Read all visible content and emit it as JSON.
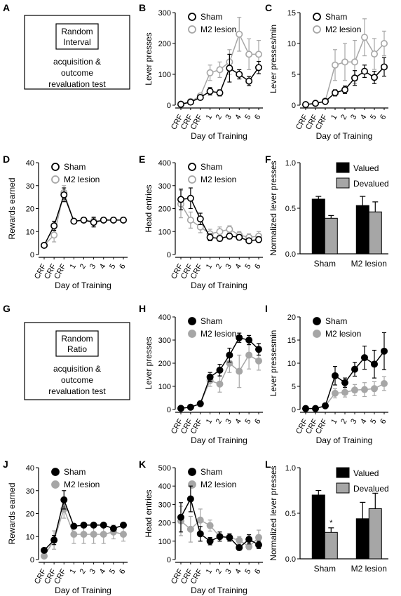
{
  "panels": [
    {
      "label": "A",
      "kind": "box",
      "box_title_lines": [
        "Random",
        "Interval"
      ],
      "box_text_lines": [
        "acquisition &",
        "outcome",
        "revaluation test"
      ]
    },
    {
      "label": "B",
      "kind": "line",
      "marker_style": "open",
      "ylabel": "Lever presses",
      "xlabel": "Day of Training",
      "categories": [
        "CRF",
        "CRF",
        "CRF",
        "1",
        "2",
        "3",
        "4",
        "5",
        "6"
      ],
      "ylim": [
        0,
        300
      ],
      "yticks": [
        0,
        100,
        200,
        300
      ],
      "series": [
        {
          "name": "Sham",
          "color": "#000000",
          "values": [
            3,
            10,
            25,
            45,
            40,
            120,
            100,
            78,
            122
          ],
          "err": [
            0,
            4,
            6,
            12,
            10,
            45,
            15,
            15,
            20
          ]
        },
        {
          "name": "M2 lesion",
          "color": "#a6a6a6",
          "values": [
            3,
            12,
            30,
            105,
            115,
            140,
            230,
            165,
            165
          ],
          "err": [
            0,
            4,
            8,
            25,
            25,
            40,
            55,
            50,
            45
          ]
        }
      ]
    },
    {
      "label": "C",
      "kind": "line",
      "marker_style": "open",
      "ylabel": "Lever presses/min",
      "xlabel": "Day of Training",
      "categories": [
        "CRF",
        "CRF",
        "CRF",
        "1",
        "2",
        "3",
        "4",
        "5",
        "6"
      ],
      "ylim": [
        0,
        15
      ],
      "yticks": [
        0,
        5,
        10,
        15
      ],
      "series": [
        {
          "name": "Sham",
          "color": "#000000",
          "values": [
            0.1,
            0.3,
            0.6,
            2.0,
            2.5,
            4.4,
            5.5,
            4.5,
            6.2
          ],
          "err": [
            0,
            0.1,
            0.2,
            0.5,
            0.6,
            1.2,
            1.0,
            1.0,
            1.5
          ]
        },
        {
          "name": "M2 lesion",
          "color": "#a6a6a6",
          "values": [
            0.1,
            0.3,
            0.7,
            6.5,
            7.0,
            7.0,
            11.0,
            8.3,
            10.0
          ],
          "err": [
            0,
            0.1,
            0.3,
            2.5,
            3.0,
            3.5,
            3.0,
            2.5,
            2.0
          ]
        }
      ]
    },
    {
      "label": "D",
      "kind": "line",
      "marker_style": "open",
      "ylabel": "Rewards earned",
      "xlabel": "Day of Training",
      "categories": [
        "CRF",
        "CRF",
        "CRF",
        "1",
        "2",
        "3",
        "4",
        "5",
        "6"
      ],
      "ylim": [
        0,
        40
      ],
      "yticks": [
        0,
        10,
        20,
        30,
        40
      ],
      "series": [
        {
          "name": "Sham",
          "color": "#000000",
          "values": [
            4,
            12.5,
            26,
            14.5,
            15,
            14,
            15,
            15,
            15
          ],
          "err": [
            0.5,
            2,
            3,
            0.5,
            0.5,
            2,
            0.3,
            0.3,
            0.3
          ]
        },
        {
          "name": "M2 lesion",
          "color": "#a6a6a6",
          "values": [
            4,
            8.5,
            27,
            14.5,
            15,
            14.5,
            15,
            15,
            15
          ],
          "err": [
            0.5,
            3,
            3,
            0.5,
            0.5,
            2,
            0.3,
            0.3,
            0.3
          ]
        }
      ]
    },
    {
      "label": "E",
      "kind": "line",
      "marker_style": "open",
      "ylabel": "Head entries",
      "xlabel": "Day of Training",
      "categories": [
        "CRF",
        "CRF",
        "CRF",
        "1",
        "2",
        "3",
        "4",
        "5",
        "6"
      ],
      "ylim": [
        0,
        400
      ],
      "yticks": [
        0,
        100,
        200,
        300,
        400
      ],
      "series": [
        {
          "name": "Sham",
          "color": "#000000",
          "values": [
            240,
            245,
            155,
            75,
            70,
            80,
            75,
            60,
            65
          ],
          "err": [
            45,
            45,
            25,
            15,
            12,
            12,
            12,
            10,
            12
          ]
        },
        {
          "name": "M2 lesion",
          "color": "#a6a6a6",
          "values": [
            220,
            150,
            120,
            90,
            100,
            110,
            85,
            75,
            80
          ],
          "err": [
            60,
            35,
            25,
            20,
            20,
            15,
            15,
            15,
            20
          ]
        }
      ]
    },
    {
      "label": "F",
      "kind": "bar",
      "ylabel": "Normalized lever presses",
      "groups": [
        "Sham",
        "M2 lesion"
      ],
      "ylim": [
        0,
        1.0
      ],
      "yticks": [
        0,
        0.5,
        1.0
      ],
      "ytick_labels": [
        "0.0",
        "0.5",
        "1.0"
      ],
      "series": [
        {
          "name": "Valued",
          "color": "#000000",
          "values": [
            0.6,
            0.53
          ],
          "err": [
            0.03,
            0.1
          ]
        },
        {
          "name": "Devalued",
          "color": "#a6a6a6",
          "values": [
            0.39,
            0.46
          ],
          "err": [
            0.03,
            0.11
          ]
        }
      ]
    },
    {
      "label": "G",
      "kind": "box",
      "box_title_lines": [
        "Random",
        "Ratio"
      ],
      "box_text_lines": [
        "acquisition &",
        "outcome",
        "revaluation test"
      ]
    },
    {
      "label": "H",
      "kind": "line",
      "marker_style": "filled",
      "ylabel": "Lever presses",
      "xlabel": "Day of Training",
      "categories": [
        "CRF",
        "CRF",
        "CRF",
        "1",
        "2",
        "3",
        "4",
        "5",
        "6"
      ],
      "ylim": [
        0,
        400
      ],
      "yticks": [
        0,
        100,
        200,
        300,
        400
      ],
      "series": [
        {
          "name": "Sham",
          "color": "#000000",
          "values": [
            5,
            10,
            25,
            140,
            170,
            235,
            310,
            300,
            260
          ],
          "err": [
            0,
            3,
            5,
            20,
            25,
            30,
            20,
            20,
            25
          ]
        },
        {
          "name": "M2 lesion",
          "color": "#a6a6a6",
          "values": [
            5,
            10,
            25,
            125,
            110,
            200,
            165,
            235,
            210
          ],
          "err": [
            0,
            3,
            5,
            25,
            35,
            40,
            70,
            60,
            40
          ]
        }
      ]
    },
    {
      "label": "I",
      "kind": "line",
      "marker_style": "filled",
      "ylabel": "Lever pressesmin",
      "xlabel": "Day of Training",
      "categories": [
        "CRF",
        "CRF",
        "CRF",
        "1",
        "2",
        "3",
        "4",
        "5",
        "6"
      ],
      "ylim": [
        0,
        20
      ],
      "yticks": [
        0,
        5,
        10,
        15,
        20
      ],
      "series": [
        {
          "name": "Sham",
          "color": "#000000",
          "values": [
            0.2,
            0.2,
            0.8,
            7.3,
            5.8,
            8.7,
            11.2,
            9.8,
            12.6
          ],
          "err": [
            0,
            0.1,
            0.3,
            2.0,
            1.0,
            1.5,
            2.5,
            3.0,
            4.0
          ]
        },
        {
          "name": "M2 lesion",
          "color": "#a6a6a6",
          "values": [
            0.2,
            0.2,
            0.8,
            3.5,
            3.7,
            4.2,
            4.3,
            4.5,
            5.6
          ],
          "err": [
            0,
            0.1,
            0.3,
            1.0,
            1.0,
            1.2,
            1.5,
            1.5,
            1.5
          ]
        }
      ]
    },
    {
      "label": "J",
      "kind": "line",
      "marker_style": "filled",
      "ylabel": "Rewards earned",
      "xlabel": "Day of Training",
      "categories": [
        "CRF",
        "CRF",
        "CRF",
        "1",
        "2",
        "3",
        "4",
        "5",
        "6"
      ],
      "ylim": [
        0,
        40
      ],
      "yticks": [
        0,
        10,
        20,
        30,
        40
      ],
      "series": [
        {
          "name": "Sham",
          "color": "#000000",
          "values": [
            4,
            8.5,
            26,
            14.5,
            15,
            15,
            15,
            13.5,
            15
          ],
          "err": [
            1,
            2,
            4,
            1,
            0.5,
            0.5,
            0.5,
            1,
            0.5
          ]
        },
        {
          "name": "M2 lesion",
          "color": "#a6a6a6",
          "values": [
            1.5,
            8.5,
            22,
            11,
            11,
            11,
            11,
            12,
            11
          ],
          "err": [
            0.5,
            4,
            4,
            4,
            4,
            4,
            4,
            3,
            3
          ]
        }
      ]
    },
    {
      "label": "K",
      "kind": "line",
      "marker_style": "filled",
      "ylabel": "Head entries",
      "xlabel": "Day of Training",
      "categories": [
        "CRF",
        "CRF",
        "CRF",
        "1",
        "2",
        "3",
        "4",
        "5",
        "6"
      ],
      "ylim": [
        0,
        500
      ],
      "yticks": [
        0,
        100,
        200,
        300,
        400,
        500
      ],
      "series": [
        {
          "name": "Sham",
          "color": "#000000",
          "values": [
            230,
            330,
            140,
            100,
            125,
            120,
            65,
            110,
            80
          ],
          "err": [
            80,
            70,
            40,
            20,
            25,
            20,
            15,
            25,
            20
          ]
        },
        {
          "name": "M2 lesion",
          "color": "#a6a6a6",
          "values": [
            210,
            165,
            215,
            185,
            125,
            120,
            105,
            70,
            120
          ],
          "err": [
            80,
            70,
            60,
            30,
            25,
            20,
            20,
            15,
            40
          ]
        }
      ]
    },
    {
      "label": "L",
      "kind": "bar",
      "ylabel": "Normalized lever presses",
      "groups": [
        "Sham",
        "M2 lesion"
      ],
      "ylim": [
        0,
        1.0
      ],
      "yticks": [
        0,
        0.5,
        1.0
      ],
      "ytick_labels": [
        "0.0",
        "0.5",
        "1.0"
      ],
      "annotation": "*",
      "series": [
        {
          "name": "Valued",
          "color": "#000000",
          "values": [
            0.7,
            0.44
          ],
          "err": [
            0.05,
            0.18
          ]
        },
        {
          "name": "Devalued",
          "color": "#a6a6a6",
          "values": [
            0.29,
            0.55
          ],
          "err": [
            0.05,
            0.17
          ]
        }
      ]
    }
  ]
}
